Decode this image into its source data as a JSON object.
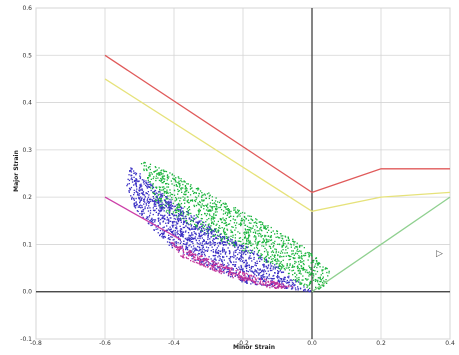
{
  "chart_data": {
    "type": "scatter",
    "title": "",
    "xlabel": "Minor Strain",
    "ylabel": "Major Strain",
    "xlim": [
      -0.8,
      0.4
    ],
    "ylim": [
      -0.1,
      0.6
    ],
    "x_ticks": [
      "-0.8",
      "-0.6",
      "-0.4",
      "-0.2",
      "0.0",
      "0.2",
      "0.4"
    ],
    "y_ticks": [
      "-0.1",
      "0.0",
      "0.1",
      "0.2",
      "0.3",
      "0.4",
      "0.5",
      "0.6"
    ],
    "grid": true,
    "legend": "none",
    "colors": {
      "red_line": "#e05a5a",
      "yellow_line": "#e6e27a",
      "green_line": "#8fd08f",
      "magenta_line": "#cc3fa8",
      "green_points": "#19b43c",
      "blue_points": "#3a2fc4",
      "magenta_points": "#c4329a",
      "grid": "#d4d4d4",
      "axis": "#333333"
    },
    "series": [
      {
        "kind": "line",
        "color_key": "red_line",
        "points": [
          [
            -0.6,
            0.5
          ],
          [
            0.0,
            0.21
          ],
          [
            0.2,
            0.26
          ],
          [
            0.4,
            0.26
          ]
        ]
      },
      {
        "kind": "line",
        "color_key": "yellow_line",
        "points": [
          [
            -0.6,
            0.45
          ],
          [
            0.0,
            0.17
          ],
          [
            0.2,
            0.2
          ],
          [
            0.4,
            0.21
          ]
        ]
      },
      {
        "kind": "line",
        "color_key": "green_line",
        "points": [
          [
            0.0,
            0.0
          ],
          [
            0.4,
            0.2
          ]
        ]
      },
      {
        "kind": "line",
        "color_key": "magenta_line",
        "points": [
          [
            -0.6,
            0.2
          ],
          [
            -0.38,
            0.11
          ]
        ]
      },
      {
        "kind": "band",
        "color_key": "green_points",
        "count": 1300,
        "seed": 11,
        "polygon": [
          [
            -0.5,
            0.28
          ],
          [
            -0.4,
            0.25
          ],
          [
            -0.2,
            0.17
          ],
          [
            -0.05,
            0.11
          ],
          [
            0.01,
            0.075
          ],
          [
            0.05,
            0.045
          ],
          [
            0.04,
            0.015
          ],
          [
            0.0,
            0.0
          ],
          [
            -0.15,
            0.07
          ],
          [
            -0.3,
            0.12
          ],
          [
            -0.45,
            0.18
          ]
        ]
      },
      {
        "kind": "band",
        "color_key": "blue_points",
        "count": 1500,
        "seed": 23,
        "polygon": [
          [
            -0.53,
            0.27
          ],
          [
            -0.42,
            0.2
          ],
          [
            -0.3,
            0.14
          ],
          [
            -0.15,
            0.08
          ],
          [
            0.0,
            0.0
          ],
          [
            -0.2,
            0.02
          ],
          [
            -0.3,
            0.05
          ],
          [
            -0.42,
            0.1
          ],
          [
            -0.52,
            0.18
          ],
          [
            -0.54,
            0.22
          ]
        ]
      },
      {
        "kind": "band",
        "color_key": "magenta_points",
        "count": 380,
        "seed": 37,
        "polygon": [
          [
            -0.42,
            0.11
          ],
          [
            -0.3,
            0.07
          ],
          [
            -0.15,
            0.03
          ],
          [
            -0.05,
            0.012
          ],
          [
            -0.1,
            0.005
          ],
          [
            -0.25,
            0.035
          ],
          [
            -0.38,
            0.075
          ]
        ]
      }
    ]
  },
  "cursor_glyph": "▷"
}
